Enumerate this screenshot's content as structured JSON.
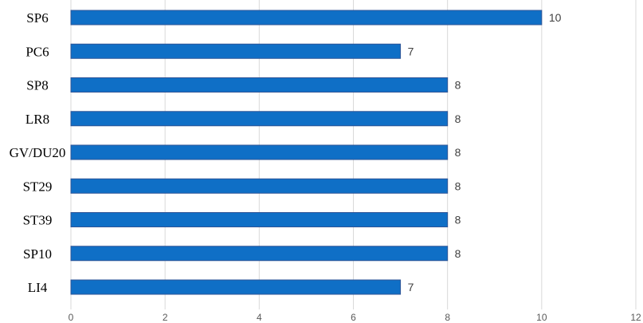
{
  "chart_data": {
    "type": "bar",
    "orientation": "horizontal",
    "categories": [
      "SP6",
      "PC6",
      "SP8",
      "LR8",
      "GV/DU20",
      "ST29",
      "ST39",
      "SP10",
      "LI4"
    ],
    "values": [
      10,
      7,
      8,
      8,
      8,
      8,
      8,
      8,
      7
    ],
    "title": "",
    "xlabel": "",
    "ylabel": "",
    "xlim": [
      0,
      12
    ],
    "xticks": [
      "0",
      "2",
      "4",
      "6",
      "8",
      "10",
      "12"
    ],
    "data_labels": [
      "10",
      "7",
      "8",
      "8",
      "8",
      "8",
      "8",
      "8",
      "7"
    ],
    "grid": "vertical",
    "legend": "none",
    "bar_color": "#0F6FC6",
    "bar_border_color": "#2F5597"
  }
}
